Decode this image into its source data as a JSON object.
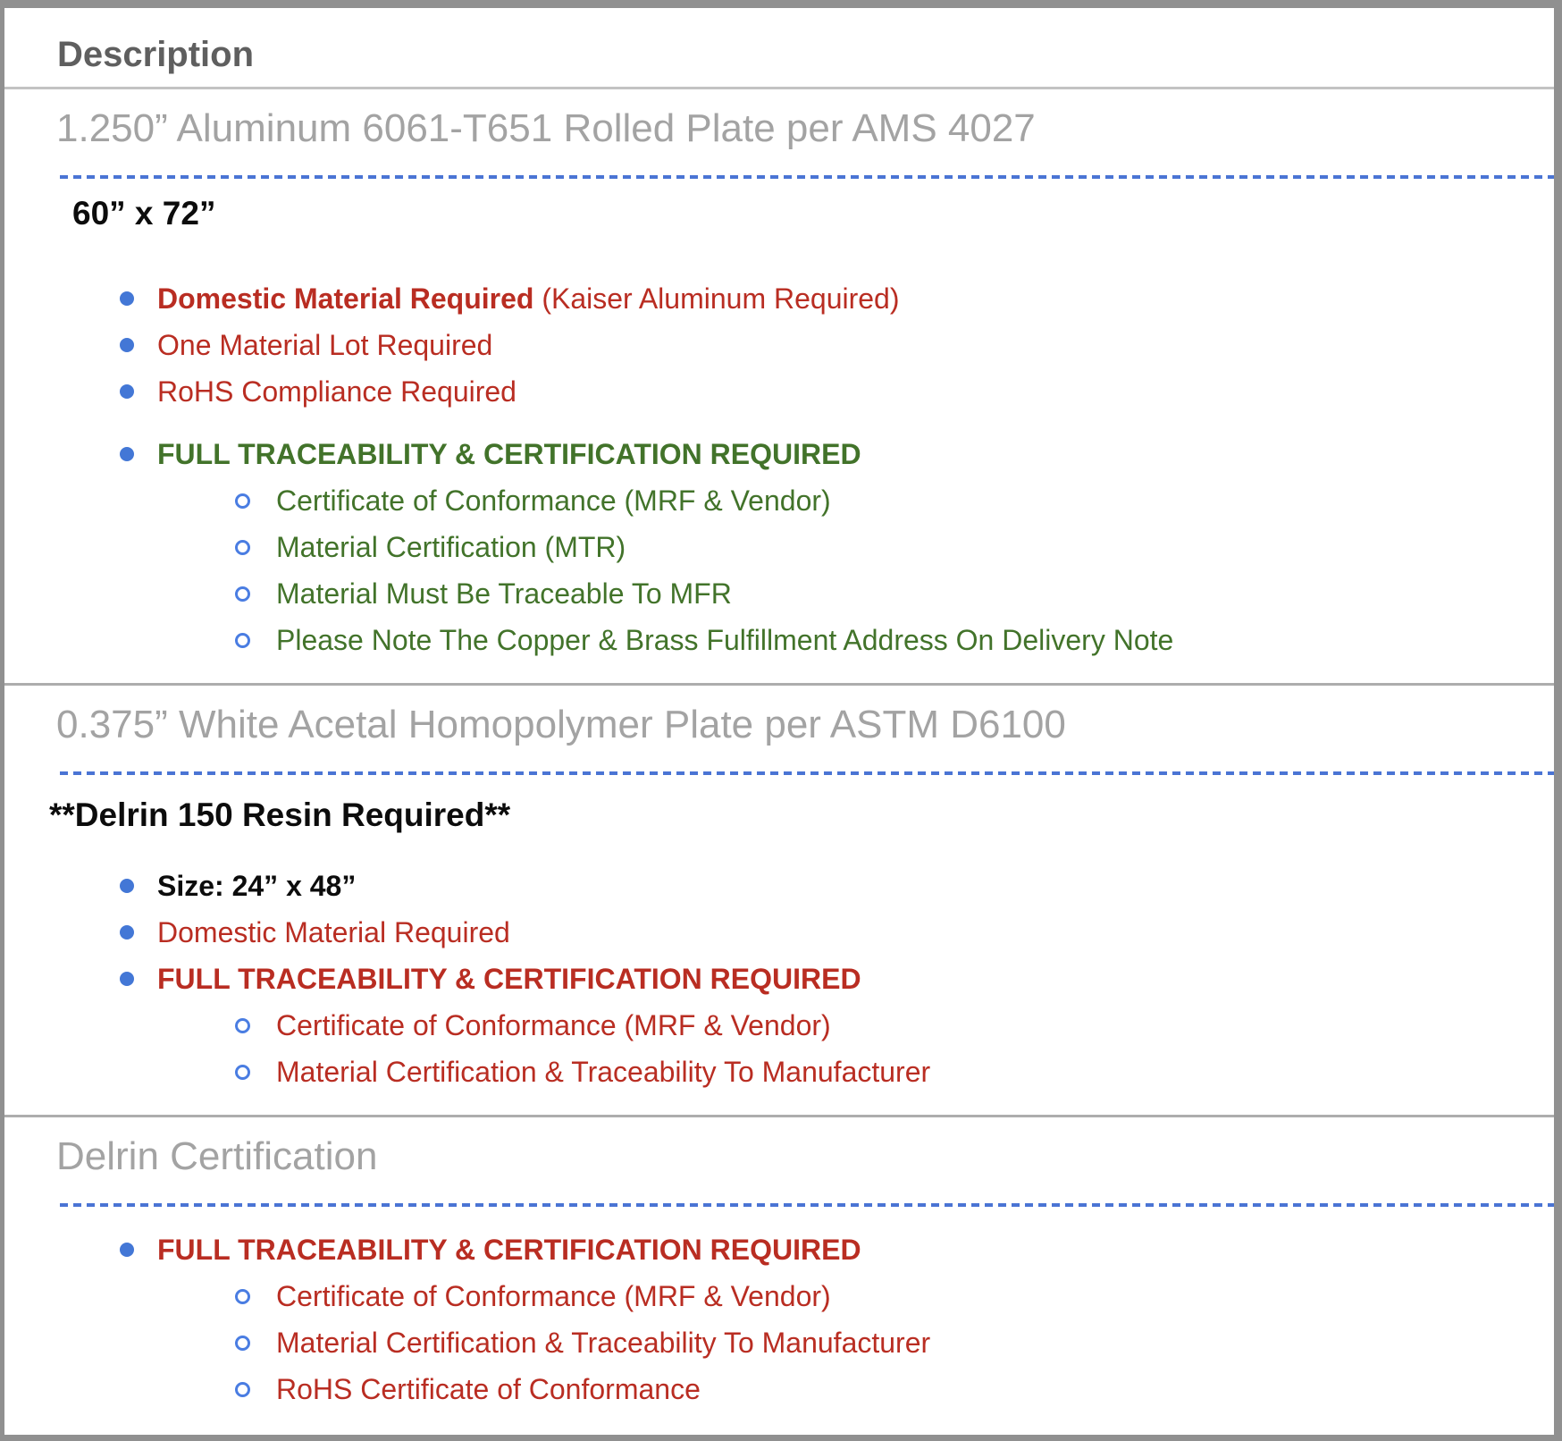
{
  "colors": {
    "red": "#b92d22",
    "green": "#42732a",
    "bullet_blue": "#4377d6",
    "circle_blue": "#4a7de2",
    "dash_blue": "#4a74d4",
    "title_gray": "#a3a3a3",
    "header_gray": "#5f5f5f",
    "header_divider": "#c3c3c3",
    "row_divider": "#adadad",
    "frame_gray": "#909090"
  },
  "table_header": {
    "label": "Description"
  },
  "sections": [
    {
      "title": "1.250” Aluminum 6061-T651 Rolled Plate per AMS 4027",
      "subheading": {
        "text": "60” x 72”",
        "flush": false
      },
      "list": [
        {
          "level": 1,
          "color": "red",
          "gap_before": false,
          "segments": [
            {
              "text": "Domestic Material Required",
              "bold": true
            },
            {
              "text": " (Kaiser Aluminum Required)",
              "bold": false
            }
          ]
        },
        {
          "level": 1,
          "color": "red",
          "gap_before": false,
          "segments": [
            {
              "text": "One Material Lot Required",
              "bold": false
            }
          ]
        },
        {
          "level": 1,
          "color": "red",
          "gap_before": false,
          "segments": [
            {
              "text": "RoHS Compliance Required",
              "bold": false
            }
          ]
        },
        {
          "level": 1,
          "color": "green",
          "gap_before": true,
          "segments": [
            {
              "text": "FULL TRACEABILITY & CERTIFICATION REQUIRED",
              "bold": true
            }
          ]
        },
        {
          "level": 2,
          "color": "green",
          "gap_before": false,
          "segments": [
            {
              "text": "Certificate of Conformance (MRF & Vendor)",
              "bold": false
            }
          ]
        },
        {
          "level": 2,
          "color": "green",
          "gap_before": false,
          "segments": [
            {
              "text": "Material Certification (MTR)",
              "bold": false
            }
          ]
        },
        {
          "level": 2,
          "color": "green",
          "gap_before": false,
          "segments": [
            {
              "text": "Material Must Be Traceable To MFR",
              "bold": false
            }
          ]
        },
        {
          "level": 2,
          "color": "green",
          "gap_before": false,
          "segments": [
            {
              "text": "Please Note The Copper & Brass Fulfillment Address On Delivery Note",
              "bold": false
            }
          ]
        }
      ]
    },
    {
      "title": "0.375” White Acetal Homopolymer Plate per ASTM D6100",
      "subheading": {
        "text": "**Delrin 150 Resin Required**",
        "flush": true
      },
      "list": [
        {
          "level": 1,
          "color": "black",
          "gap_before": false,
          "segments": [
            {
              "text": "Size: 24” x 48”",
              "bold": true
            }
          ]
        },
        {
          "level": 1,
          "color": "red",
          "gap_before": false,
          "segments": [
            {
              "text": "Domestic Material Required",
              "bold": false
            }
          ]
        },
        {
          "level": 1,
          "color": "red",
          "gap_before": false,
          "segments": [
            {
              "text": "FULL TRACEABILITY & CERTIFICATION REQUIRED",
              "bold": true
            }
          ]
        },
        {
          "level": 2,
          "color": "red",
          "gap_before": false,
          "segments": [
            {
              "text": "Certificate of Conformance (MRF & Vendor)",
              "bold": false
            }
          ]
        },
        {
          "level": 2,
          "color": "red",
          "gap_before": false,
          "segments": [
            {
              "text": "Material Certification & Traceability To Manufacturer",
              "bold": false
            }
          ]
        }
      ]
    },
    {
      "title": "Delrin Certification",
      "subheading": null,
      "list": [
        {
          "level": 1,
          "color": "red",
          "gap_before": false,
          "segments": [
            {
              "text": "FULL TRACEABILITY & CERTIFICATION REQUIRED",
              "bold": true
            }
          ]
        },
        {
          "level": 2,
          "color": "red",
          "gap_before": false,
          "segments": [
            {
              "text": "Certificate of Conformance (MRF & Vendor)",
              "bold": false
            }
          ]
        },
        {
          "level": 2,
          "color": "red",
          "gap_before": false,
          "segments": [
            {
              "text": "Material Certification & Traceability To Manufacturer",
              "bold": false
            }
          ]
        },
        {
          "level": 2,
          "color": "red",
          "gap_before": false,
          "segments": [
            {
              "text": "RoHS Certificate of Conformance",
              "bold": false
            }
          ]
        }
      ]
    }
  ]
}
